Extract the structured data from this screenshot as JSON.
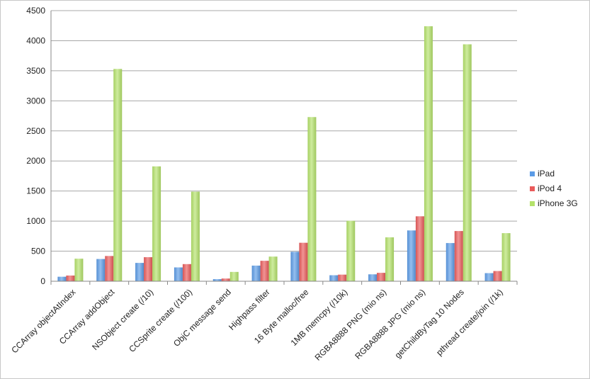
{
  "chart_data": {
    "type": "bar",
    "categories": [
      "CCArray objectAtIndex",
      "CCArray addObject",
      "NSObject create (/10)",
      "CCSprite create (/100)",
      "ObjC message send",
      "Highpass filter",
      "16 Byte malloc/free",
      "1MB memcpy (/10k)",
      "RGBA8888 PNG (mio ns)",
      "RGBA8888 JPG (mio ns)",
      "getChildByTag 10 Nodes",
      "pthread create/join (/1k)"
    ],
    "series": [
      {
        "name": "iPad",
        "color": "#5b9be6",
        "values": [
          75,
          370,
          305,
          230,
          35,
          260,
          490,
          100,
          115,
          845,
          635,
          135
        ]
      },
      {
        "name": "iPod 4",
        "color": "#ea5b5b",
        "values": [
          95,
          420,
          400,
          285,
          45,
          340,
          640,
          110,
          140,
          1080,
          835,
          170
        ]
      },
      {
        "name": "iPhone 3G",
        "color": "#b4e26a",
        "values": [
          375,
          3530,
          1910,
          1490,
          155,
          410,
          2730,
          1005,
          730,
          4240,
          3940,
          800
        ]
      }
    ],
    "yticks": [
      "0",
      "500",
      "1000",
      "1500",
      "2000",
      "2500",
      "3000",
      "3500",
      "4000",
      "4500"
    ],
    "ylim": [
      0,
      4500
    ],
    "grid": true,
    "legend_position": "right"
  }
}
